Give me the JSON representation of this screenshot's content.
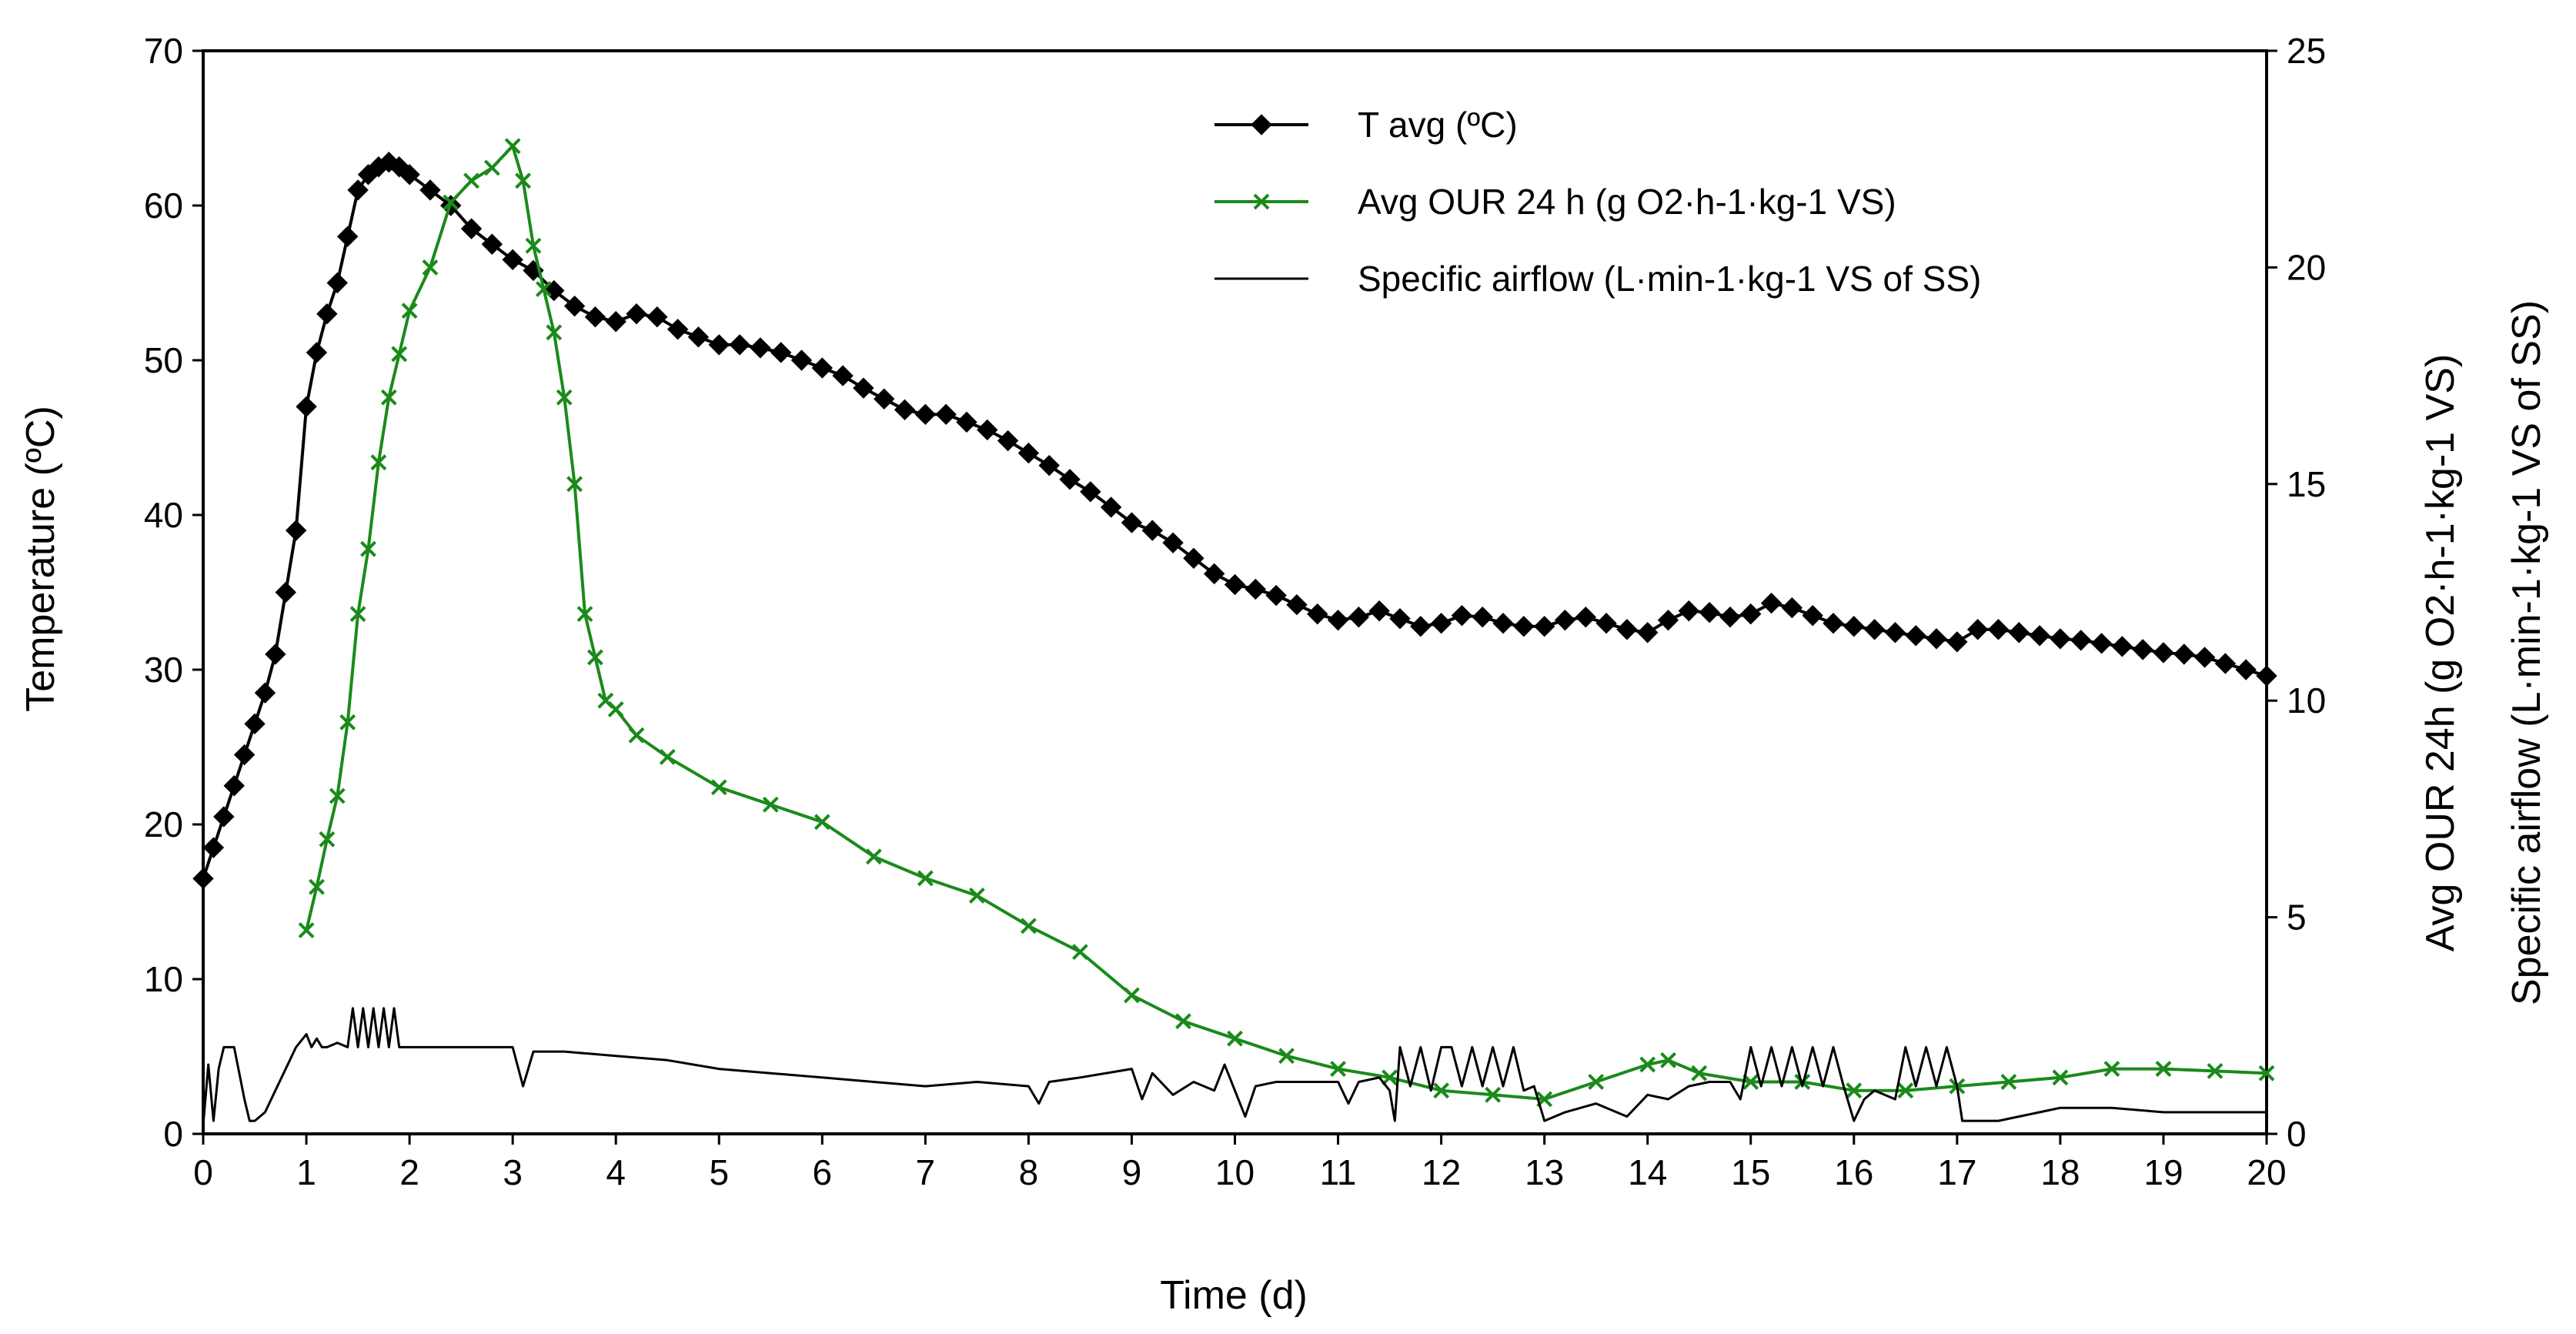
{
  "chart_data": {
    "type": "line",
    "x_axis": {
      "label": "Time (d)",
      "range": [
        0,
        20
      ],
      "ticks": [
        0,
        1,
        2,
        3,
        4,
        5,
        6,
        7,
        8,
        9,
        10,
        11,
        12,
        13,
        14,
        15,
        16,
        17,
        18,
        19,
        20
      ]
    },
    "y_axis_left": {
      "label": "Temperature (ºC)",
      "range": [
        0,
        70
      ],
      "ticks": [
        0,
        10,
        20,
        30,
        40,
        50,
        60,
        70
      ]
    },
    "y_axis_right": {
      "label_line1": "Avg OUR 24h (g O2·h-1·kg-1 VS)",
      "label_line2": "Specific airflow (L·min-1·kg-1 VS of SS)",
      "range": [
        0,
        25
      ],
      "ticks": [
        0,
        5,
        10,
        15,
        20,
        25
      ]
    },
    "legend": {
      "position": "top-right",
      "entries": [
        {
          "name": "T avg (ºC)",
          "color": "#000000",
          "marker": "diamond"
        },
        {
          "name": "Avg OUR 24 h (g O2·h-1·kg-1 VS)",
          "color": "#1a8a1a",
          "marker": "x"
        },
        {
          "name": "Specific airflow (L·min-1·kg-1 VS of SS)",
          "color": "#000000",
          "marker": "none"
        }
      ]
    },
    "series": [
      {
        "name": "T avg (ºC)",
        "axis": "left",
        "color": "#000000",
        "marker": "diamond",
        "x": [
          0,
          0.1,
          0.2,
          0.3,
          0.4,
          0.5,
          0.6,
          0.7,
          0.8,
          0.9,
          1.0,
          1.1,
          1.2,
          1.3,
          1.4,
          1.5,
          1.6,
          1.7,
          1.8,
          1.9,
          2.0,
          2.2,
          2.4,
          2.6,
          2.8,
          3.0,
          3.2,
          3.4,
          3.6,
          3.8,
          4.0,
          4.2,
          4.4,
          4.6,
          4.8,
          5.0,
          5.2,
          5.4,
          5.6,
          5.8,
          6.0,
          6.2,
          6.4,
          6.6,
          6.8,
          7.0,
          7.2,
          7.4,
          7.6,
          7.8,
          8.0,
          8.2,
          8.4,
          8.6,
          8.8,
          9.0,
          9.2,
          9.4,
          9.6,
          9.8,
          10.0,
          10.2,
          10.4,
          10.6,
          10.8,
          11.0,
          11.2,
          11.4,
          11.6,
          11.8,
          12.0,
          12.2,
          12.4,
          12.6,
          12.8,
          13.0,
          13.2,
          13.4,
          13.6,
          13.8,
          14.0,
          14.2,
          14.4,
          14.6,
          14.8,
          15.0,
          15.2,
          15.4,
          15.6,
          15.8,
          16.0,
          16.2,
          16.4,
          16.6,
          16.8,
          17.0,
          17.2,
          17.4,
          17.6,
          17.8,
          18.0,
          18.2,
          18.4,
          18.6,
          18.8,
          19.0,
          19.2,
          19.4,
          19.6,
          19.8,
          20.0
        ],
        "y": [
          16.5,
          18.5,
          20.5,
          22.5,
          24.5,
          26.5,
          28.5,
          31,
          35,
          39,
          47,
          50.5,
          53,
          55,
          58,
          61,
          62,
          62.5,
          62.8,
          62.5,
          62,
          61,
          60,
          58.5,
          57.5,
          56.5,
          55.8,
          54.5,
          53.5,
          52.8,
          52.5,
          53,
          52.8,
          52,
          51.5,
          51,
          51,
          50.8,
          50.5,
          50,
          49.5,
          49,
          48.2,
          47.5,
          46.8,
          46.5,
          46.5,
          46,
          45.5,
          44.8,
          44,
          43.2,
          42.3,
          41.5,
          40.5,
          39.5,
          39,
          38.2,
          37.2,
          36.2,
          35.5,
          35.2,
          34.8,
          34.2,
          33.6,
          33.2,
          33.4,
          33.8,
          33.3,
          32.8,
          33,
          33.5,
          33.4,
          33,
          32.8,
          32.8,
          33.2,
          33.4,
          33,
          32.6,
          32.4,
          33.2,
          33.8,
          33.7,
          33.4,
          33.6,
          34.3,
          34,
          33.5,
          33,
          32.8,
          32.6,
          32.4,
          32.2,
          32,
          31.8,
          32.6,
          32.6,
          32.4,
          32.2,
          32,
          31.9,
          31.7,
          31.5,
          31.3,
          31.1,
          31,
          30.8,
          30.4,
          30,
          29.6
        ]
      },
      {
        "name": "Avg OUR 24 h (g O2·h-1·kg-1 VS)",
        "axis": "right",
        "color": "#1a8a1a",
        "marker": "x",
        "x": [
          1.0,
          1.1,
          1.2,
          1.3,
          1.4,
          1.5,
          1.6,
          1.7,
          1.8,
          1.9,
          2.0,
          2.2,
          2.4,
          2.6,
          2.8,
          3.0,
          3.1,
          3.2,
          3.3,
          3.4,
          3.5,
          3.6,
          3.7,
          3.8,
          3.9,
          4.0,
          4.2,
          4.5,
          5.0,
          5.5,
          6.0,
          6.5,
          7.0,
          7.5,
          8.0,
          8.5,
          9.0,
          9.5,
          10.0,
          10.5,
          11.0,
          11.5,
          12.0,
          12.5,
          13.0,
          13.5,
          14.0,
          14.2,
          14.5,
          15.0,
          15.5,
          16.0,
          16.5,
          17.0,
          17.5,
          18.0,
          18.5,
          19.0,
          19.5,
          20.0
        ],
        "y": [
          4.7,
          5.7,
          6.8,
          7.8,
          9.5,
          12,
          13.5,
          15.5,
          17,
          18,
          19,
          20,
          21.5,
          22,
          22.3,
          22.8,
          22,
          20.5,
          19.5,
          18.5,
          17,
          15,
          12,
          11,
          10,
          9.8,
          9.2,
          8.7,
          8,
          7.6,
          7.2,
          6.4,
          5.9,
          5.5,
          4.8,
          4.2,
          3.2,
          2.6,
          2.2,
          1.8,
          1.5,
          1.3,
          1.0,
          0.9,
          0.8,
          1.2,
          1.6,
          1.7,
          1.4,
          1.2,
          1.2,
          1.0,
          1.0,
          1.1,
          1.2,
          1.3,
          1.5,
          1.5,
          1.45,
          1.4
        ]
      },
      {
        "name": "Specific airflow (L·min-1·kg-1 VS of SS)",
        "axis": "right",
        "color": "#000000",
        "marker": "none",
        "x": [
          0,
          0.05,
          0.1,
          0.15,
          0.2,
          0.25,
          0.3,
          0.4,
          0.45,
          0.5,
          0.6,
          0.7,
          0.8,
          0.9,
          1.0,
          1.05,
          1.1,
          1.15,
          1.2,
          1.3,
          1.4,
          1.45,
          1.5,
          1.55,
          1.6,
          1.65,
          1.7,
          1.75,
          1.8,
          1.85,
          1.9,
          1.95,
          2.0,
          2.5,
          3.0,
          3.1,
          3.2,
          3.5,
          4.0,
          4.5,
          5.0,
          5.5,
          6.0,
          6.5,
          7.0,
          7.5,
          8.0,
          8.1,
          8.2,
          8.5,
          9.0,
          9.1,
          9.2,
          9.4,
          9.6,
          9.8,
          9.9,
          10.0,
          10.1,
          10.2,
          10.4,
          10.6,
          11.0,
          11.1,
          11.2,
          11.4,
          11.5,
          11.55,
          11.6,
          11.7,
          11.8,
          11.9,
          12.0,
          12.1,
          12.2,
          12.3,
          12.4,
          12.5,
          12.6,
          12.7,
          12.8,
          12.9,
          13.0,
          13.2,
          13.5,
          13.8,
          14.0,
          14.2,
          14.4,
          14.6,
          14.8,
          14.9,
          15.0,
          15.1,
          15.2,
          15.3,
          15.4,
          15.5,
          15.6,
          15.7,
          15.8,
          15.9,
          16.0,
          16.1,
          16.2,
          16.4,
          16.5,
          16.6,
          16.7,
          16.8,
          16.9,
          17.0,
          17.05,
          17.1,
          17.4,
          17.6,
          17.8,
          18.0,
          18.5,
          19.0,
          19.5,
          20.0
        ],
        "y": [
          0.2,
          1.6,
          0.3,
          1.5,
          2.0,
          2.0,
          2.0,
          0.8,
          0.3,
          0.3,
          0.5,
          1.0,
          1.5,
          2.0,
          2.3,
          2.0,
          2.2,
          2.0,
          2.0,
          2.1,
          2.0,
          2.9,
          2.0,
          2.9,
          2.0,
          2.9,
          2.0,
          2.9,
          2.0,
          2.9,
          2.0,
          2.0,
          2.0,
          2.0,
          2.0,
          1.1,
          1.9,
          1.9,
          1.8,
          1.7,
          1.5,
          1.4,
          1.3,
          1.2,
          1.1,
          1.2,
          1.1,
          0.7,
          1.2,
          1.3,
          1.5,
          0.8,
          1.4,
          0.9,
          1.2,
          1.0,
          1.6,
          1.0,
          0.4,
          1.1,
          1.2,
          1.2,
          1.2,
          0.7,
          1.2,
          1.3,
          1.0,
          0.3,
          2.0,
          1.1,
          2.0,
          1.0,
          2.0,
          2.0,
          1.1,
          2.0,
          1.1,
          2.0,
          1.1,
          2.0,
          1.0,
          1.1,
          0.3,
          0.5,
          0.7,
          0.4,
          0.9,
          0.8,
          1.1,
          1.2,
          1.2,
          0.8,
          2.0,
          1.1,
          2.0,
          1.1,
          2.0,
          1.1,
          2.0,
          1.1,
          2.0,
          1.1,
          0.3,
          0.8,
          1.0,
          0.8,
          2.0,
          1.1,
          2.0,
          1.1,
          2.0,
          1.1,
          0.3,
          0.3,
          0.3,
          0.4,
          0.5,
          0.6,
          0.6,
          0.5,
          0.5,
          0.5
        ]
      }
    ]
  }
}
